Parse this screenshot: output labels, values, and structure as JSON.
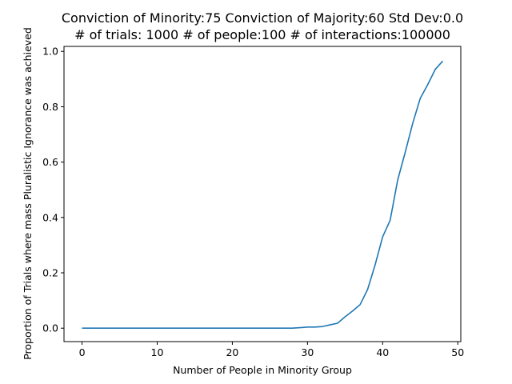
{
  "chart_data": {
    "type": "line",
    "title_line1": "Conviction of Minority:75 Conviction of Majority:60 Std Dev:0.0",
    "title_line2": "# of trials: 1000 # of people:100 # of interactions:100000",
    "xlabel": "Number of People in Minority Group",
    "ylabel": "Proportion of Trials where mass Pluralistic Ignorance was achieved",
    "xlim": [
      -2.4,
      50.4
    ],
    "ylim": [
      -0.0485,
      1.018
    ],
    "xticks": [
      0,
      10,
      20,
      30,
      40,
      50
    ],
    "yticks": [
      0.0,
      0.2,
      0.4,
      0.6,
      0.8,
      1.0
    ],
    "xtick_labels": [
      "0",
      "10",
      "20",
      "30",
      "40",
      "50"
    ],
    "ytick_labels": [
      "0.0",
      "0.2",
      "0.4",
      "0.6",
      "0.8",
      "1.0"
    ],
    "grid": false,
    "color": "#1f77b4",
    "series": [
      {
        "x": [
          0,
          1,
          2,
          3,
          4,
          5,
          6,
          7,
          8,
          9,
          10,
          11,
          12,
          13,
          14,
          15,
          16,
          17,
          18,
          19,
          20,
          21,
          22,
          23,
          24,
          25,
          26,
          27,
          28,
          29,
          30,
          31,
          32,
          33,
          34,
          35,
          36,
          37,
          38,
          39,
          40,
          41,
          42,
          43,
          44,
          45,
          46,
          47,
          48
        ],
        "y": [
          0,
          0,
          0,
          0,
          0,
          0,
          0,
          0,
          0,
          0,
          0,
          0,
          0,
          0,
          0,
          0,
          0,
          0,
          0,
          0,
          0,
          0,
          0,
          0,
          0,
          0,
          0,
          0,
          0,
          0.002,
          0.004,
          0.004,
          0.006,
          0.012,
          0.018,
          0.041,
          0.062,
          0.085,
          0.14,
          0.229,
          0.33,
          0.39,
          0.535,
          0.635,
          0.74,
          0.83,
          0.88,
          0.935,
          0.965
        ]
      }
    ]
  }
}
